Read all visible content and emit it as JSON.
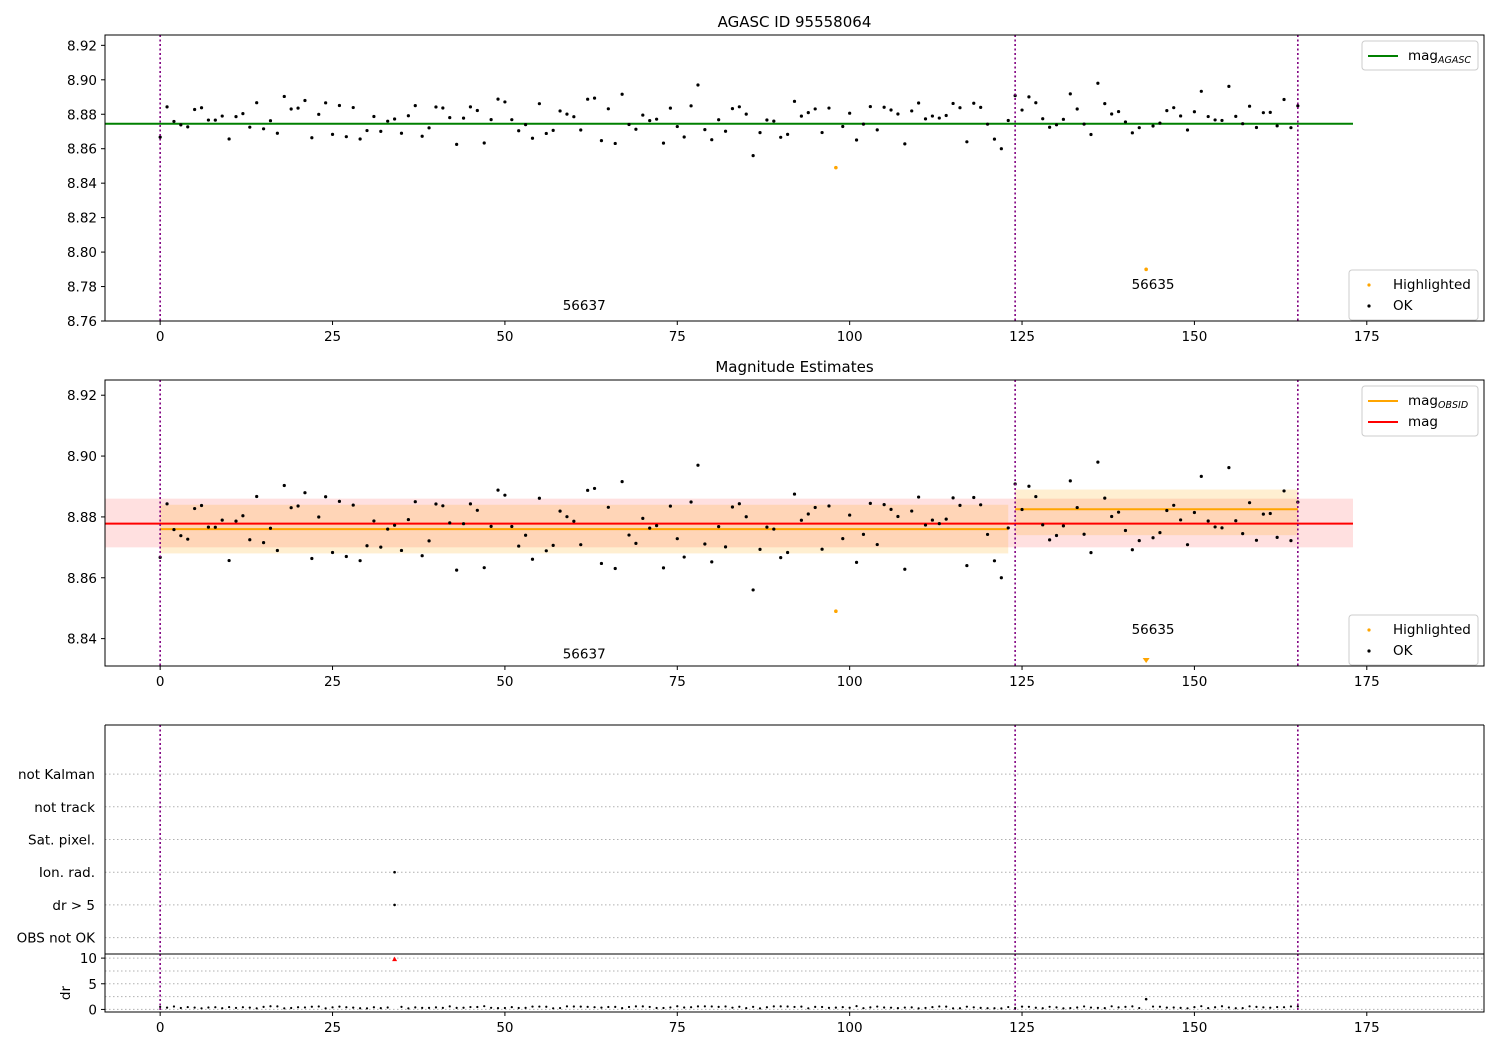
{
  "chart_data": [
    {
      "type": "scatter",
      "title": "AGASC ID 95558064",
      "xlim": [
        -8,
        192
      ],
      "ylim": [
        8.76,
        8.926
      ],
      "xticks": [
        0,
        25,
        50,
        75,
        100,
        125,
        150,
        175
      ],
      "yticks": [
        8.76,
        8.78,
        8.8,
        8.82,
        8.84,
        8.86,
        8.88,
        8.9,
        8.92
      ],
      "ytick_format": "2dp",
      "grid": false,
      "legend_top": {
        "placement": "top-right",
        "entries": [
          {
            "label": "mag",
            "sub": "AGASC",
            "color": "#008000",
            "kind": "line"
          }
        ]
      },
      "legend_bottom": {
        "placement": "bottom-right",
        "entries": [
          {
            "label": "Highlighted",
            "color": "#ffa500",
            "kind": "dot"
          },
          {
            "label": "OK",
            "color": "#000000",
            "kind": "dot"
          }
        ]
      },
      "reference_lines": [
        {
          "name": "mag AGASC",
          "y": 8.8745,
          "x": [
            -8,
            173
          ],
          "color": "#008000"
        }
      ],
      "obs_boundaries": [
        0,
        124,
        165
      ],
      "obs_labels": [
        {
          "text": "56637",
          "x": 61.5,
          "y": 8.7665
        },
        {
          "text": "56635",
          "x": 144,
          "y": 8.7785
        }
      ],
      "highlighted": [
        {
          "x": 98,
          "y": 8.849
        },
        {
          "x": 143,
          "y": 8.79
        }
      ]
    },
    {
      "type": "scatter",
      "title": "Magnitude Estimates",
      "xlim": [
        -8,
        192
      ],
      "ylim": [
        8.831,
        8.925
      ],
      "xticks": [
        0,
        25,
        50,
        75,
        100,
        125,
        150,
        175
      ],
      "yticks": [
        8.84,
        8.86,
        8.88,
        8.9,
        8.92
      ],
      "ytick_format": "2dp",
      "grid": false,
      "legend_top": {
        "placement": "top-right",
        "entries": [
          {
            "label": "mag",
            "sub": "OBSID",
            "color": "#ffa500",
            "kind": "line"
          },
          {
            "label": "mag",
            "sub": "",
            "color": "#ff0000",
            "kind": "line"
          }
        ]
      },
      "legend_bottom": {
        "placement": "bottom-right",
        "entries": [
          {
            "label": "Highlighted",
            "color": "#ffa500",
            "kind": "dot"
          },
          {
            "label": "OK",
            "color": "#000000",
            "kind": "dot"
          }
        ]
      },
      "bands": [
        {
          "x": [
            -8,
            173
          ],
          "y": [
            8.87,
            8.886
          ],
          "color": "#ff0000",
          "opacity": 0.12
        },
        {
          "x": [
            0,
            123
          ],
          "y": [
            8.868,
            8.884
          ],
          "color": "#ffa500",
          "opacity": 0.18
        },
        {
          "x": [
            124,
            165
          ],
          "y": [
            8.874,
            8.889
          ],
          "color": "#ffa500",
          "opacity": 0.18
        }
      ],
      "reference_lines": [
        {
          "name": "mag",
          "y": 8.8778,
          "x": [
            -8,
            173
          ],
          "color": "#ff0000"
        },
        {
          "name": "mag OBSID 56637",
          "y": 8.876,
          "x": [
            0,
            123
          ],
          "color": "#ffa500"
        },
        {
          "name": "mag OBSID 56635",
          "y": 8.8825,
          "x": [
            124,
            165
          ],
          "color": "#ffa500"
        }
      ],
      "obs_boundaries": [
        0,
        124,
        165
      ],
      "obs_labels": [
        {
          "text": "56637",
          "x": 61.5,
          "y": 8.8335
        },
        {
          "text": "56635",
          "x": 144,
          "y": 8.8415
        }
      ],
      "highlighted": [
        {
          "x": 98,
          "y": 8.849
        }
      ],
      "offscale_markers": [
        {
          "x": 143
        }
      ]
    },
    {
      "type": "scatter",
      "title": "",
      "xlim": [
        -8,
        192
      ],
      "ylim": [
        -0.5,
        6.5
      ],
      "categories": [
        "OBS not OK",
        "dr > 5",
        "Ion. rad.",
        "Sat. pixel.",
        "not track",
        "not Kalman"
      ],
      "xticks": [],
      "grid": true,
      "obs_boundaries": [
        0,
        124,
        165
      ],
      "flags": [
        {
          "x": 34,
          "category": "Ion. rad."
        },
        {
          "x": 34,
          "category": "dr > 5"
        }
      ]
    },
    {
      "type": "scatter",
      "title": "",
      "xlim": [
        -8,
        192
      ],
      "ylim": [
        -0.5,
        10.8
      ],
      "ylabel": "dr",
      "xticks": [
        0,
        25,
        50,
        75,
        100,
        125,
        150,
        175
      ],
      "yticks": [
        0,
        5,
        10
      ],
      "ytick_format": "int",
      "grid": true,
      "obs_boundaries": [
        0,
        124,
        165
      ],
      "highlighted_dr": [
        {
          "x": 34,
          "y": 9.8
        },
        {
          "x": 143,
          "y": 2.0
        }
      ]
    }
  ]
}
